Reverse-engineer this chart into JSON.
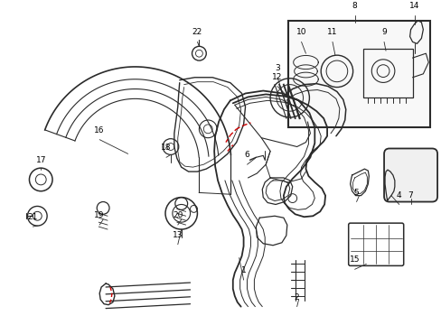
{
  "bg_color": "#ffffff",
  "line_color": "#2a2a2a",
  "red_color": "#cc0000",
  "fig_width": 4.89,
  "fig_height": 3.6,
  "dpi": 100
}
